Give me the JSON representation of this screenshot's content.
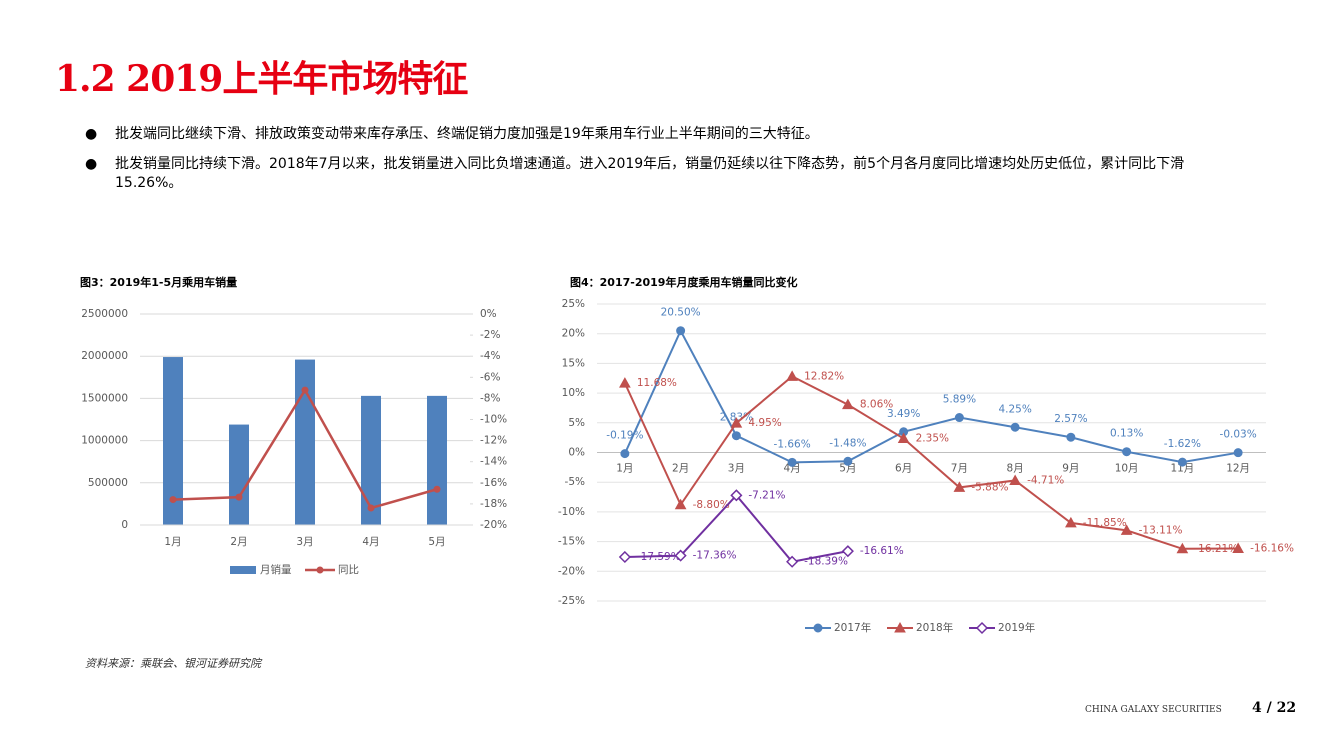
{
  "header": {
    "title": "1.2 2019上半年市场特征"
  },
  "bullets": [
    "批发端同比继续下滑、排放政策变动带来库存承压、终端促销力度加强是19年乘用车行业上半年期间的三大特征。",
    "批发销量同比持续下滑。2018年7月以来，批发销量进入同比负增速通道。进入2019年后，销量仍延续以往下降态势，前5个月各月度同比增速均处历史低位，累计同比下滑15.26%。"
  ],
  "bullet_symbol": "●",
  "chart_data": [
    {
      "type": "bar",
      "title": "图3：2019年1-5月乘用车销量",
      "categories": [
        "1月",
        "2月",
        "3月",
        "4月",
        "5月"
      ],
      "series": [
        {
          "name": "月销量",
          "color": "#4f81bd",
          "values": [
            1990000,
            1190000,
            1960000,
            1530000,
            1530000
          ]
        },
        {
          "name": "同比",
          "color": "#c0504d",
          "type": "line",
          "axis": "y2",
          "values": [
            -17.59,
            -17.36,
            -7.21,
            -18.39,
            -16.61
          ]
        }
      ],
      "ylim": [
        0,
        2500000
      ],
      "yticks": [
        0,
        500000,
        1000000,
        1500000,
        2000000,
        2500000
      ],
      "y2lim": [
        -20,
        0
      ],
      "y2ticks": [
        {
          "value": 0,
          "label": "0%"
        },
        {
          "value": -2,
          "label": "-2%"
        },
        {
          "value": -4,
          "label": "-4%"
        },
        {
          "value": -6,
          "label": "-6%"
        },
        {
          "value": -8,
          "label": "-8%"
        },
        {
          "value": -10,
          "label": "-10%"
        },
        {
          "value": -12,
          "label": "-12%"
        },
        {
          "value": -14,
          "label": "-14%"
        },
        {
          "value": -16,
          "label": "-16%"
        },
        {
          "value": -18,
          "label": "-18%"
        },
        {
          "value": -20,
          "label": "-20%"
        }
      ],
      "grid": true
    },
    {
      "type": "line",
      "title": "图4：2017-2019年月度乘用车销量同比变化",
      "categories": [
        "1月",
        "2月",
        "3月",
        "4月",
        "5月",
        "6月",
        "7月",
        "8月",
        "9月",
        "10月",
        "11月",
        "12月"
      ],
      "series": [
        {
          "name": "2017年",
          "color": "#4f81bd",
          "marker": "circle",
          "values": [
            -0.19,
            20.5,
            2.83,
            -1.66,
            -1.48,
            3.49,
            5.89,
            4.25,
            2.57,
            0.13,
            -1.62,
            -0.03
          ],
          "value_labels": [
            "-0.19%",
            "20.50%",
            "2.83%",
            "-1.66%",
            "-1.48%",
            "3.49%",
            "5.89%",
            "4.25%",
            "2.57%",
            "0.13%",
            "-1.62%",
            "-0.03%"
          ]
        },
        {
          "name": "2018年",
          "color": "#c0504d",
          "marker": "triangle",
          "values": [
            11.68,
            -8.8,
            4.95,
            12.82,
            8.06,
            2.35,
            -5.88,
            -4.71,
            -11.85,
            -13.11,
            -16.21,
            -16.16
          ],
          "value_labels": [
            "11.68%",
            "-8.80%",
            "4.95%",
            "12.82%",
            "8.06%",
            "2.35%",
            "-5.88%",
            "-4.71%",
            "-11.85%",
            "-13.11%",
            "-16.21%",
            "-16.16%"
          ]
        },
        {
          "name": "2019年",
          "color": "#7030a0",
          "marker": "diamond",
          "values": [
            -17.59,
            -17.36,
            -7.21,
            -18.39,
            -16.61,
            null,
            null,
            null,
            null,
            null,
            null,
            null
          ],
          "value_labels": [
            "-17.59%",
            "-17.36%",
            "-7.21%",
            "-18.39%",
            "-16.61%",
            null,
            null,
            null,
            null,
            null,
            null,
            null
          ]
        }
      ],
      "ylim": [
        -25,
        25
      ],
      "yticks": [
        {
          "value": -25,
          "label": "-25%"
        },
        {
          "value": -20,
          "label": "-20%"
        },
        {
          "value": -15,
          "label": "-15%"
        },
        {
          "value": -10,
          "label": "-10%"
        },
        {
          "value": -5,
          "label": "-5%"
        },
        {
          "value": 0,
          "label": "0%"
        },
        {
          "value": 5,
          "label": "5%"
        },
        {
          "value": 10,
          "label": "10%"
        },
        {
          "value": 15,
          "label": "15%"
        },
        {
          "value": 20,
          "label": "20%"
        },
        {
          "value": 25,
          "label": "25%"
        }
      ],
      "grid": true
    }
  ],
  "source": "资料来源：乘联会、银河证券研究院",
  "footer": {
    "brand": "CHINA GALAXY SECURITIES",
    "page": "4 / 22"
  }
}
